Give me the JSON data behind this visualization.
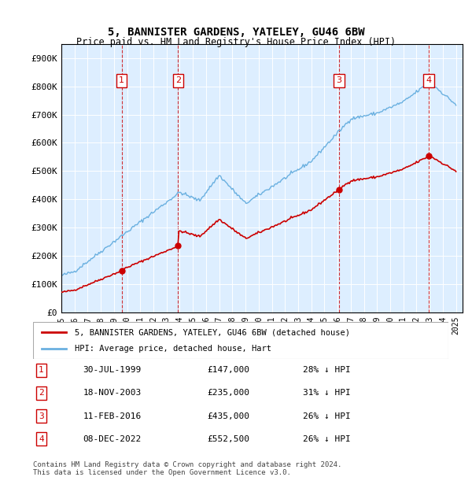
{
  "title": "5, BANNISTER GARDENS, YATELEY, GU46 6BW",
  "subtitle": "Price paid vs. HM Land Registry's House Price Index (HPI)",
  "footer": "Contains HM Land Registry data © Crown copyright and database right 2024.\nThis data is licensed under the Open Government Licence v3.0.",
  "legend_line1": "5, BANNISTER GARDENS, YATELEY, GU46 6BW (detached house)",
  "legend_line2": "HPI: Average price, detached house, Hart",
  "transactions": [
    {
      "num": 1,
      "date": "30-JUL-1999",
      "price": 147000,
      "pct": "28% ↓ HPI",
      "year": 1999.58
    },
    {
      "num": 2,
      "date": "18-NOV-2003",
      "price": 235000,
      "pct": "31% ↓ HPI",
      "year": 2003.88
    },
    {
      "num": 3,
      "date": "11-FEB-2016",
      "price": 435000,
      "pct": "26% ↓ HPI",
      "year": 2016.12
    },
    {
      "num": 4,
      "date": "08-DEC-2022",
      "price": 552500,
      "pct": "26% ↓ HPI",
      "year": 2022.93
    }
  ],
  "hpi_color": "#6ab0e0",
  "price_color": "#cc0000",
  "transaction_color": "#cc0000",
  "vline_color": "#cc0000",
  "box_color": "#cc0000",
  "bg_color": "#ddeeff",
  "ylim": [
    0,
    950000
  ],
  "xlim_min": 1995.0,
  "xlim_max": 2025.5,
  "yticks": [
    0,
    100000,
    200000,
    300000,
    400000,
    500000,
    600000,
    700000,
    800000,
    900000
  ],
  "ytick_labels": [
    "£0",
    "£100K",
    "£200K",
    "£300K",
    "£400K",
    "£500K",
    "£600K",
    "£700K",
    "£800K",
    "£900K"
  ],
  "xticks": [
    1995,
    1996,
    1997,
    1998,
    1999,
    2000,
    2001,
    2002,
    2003,
    2004,
    2005,
    2006,
    2007,
    2008,
    2009,
    2010,
    2011,
    2012,
    2013,
    2014,
    2015,
    2016,
    2017,
    2018,
    2019,
    2020,
    2021,
    2022,
    2023,
    2024,
    2025
  ]
}
